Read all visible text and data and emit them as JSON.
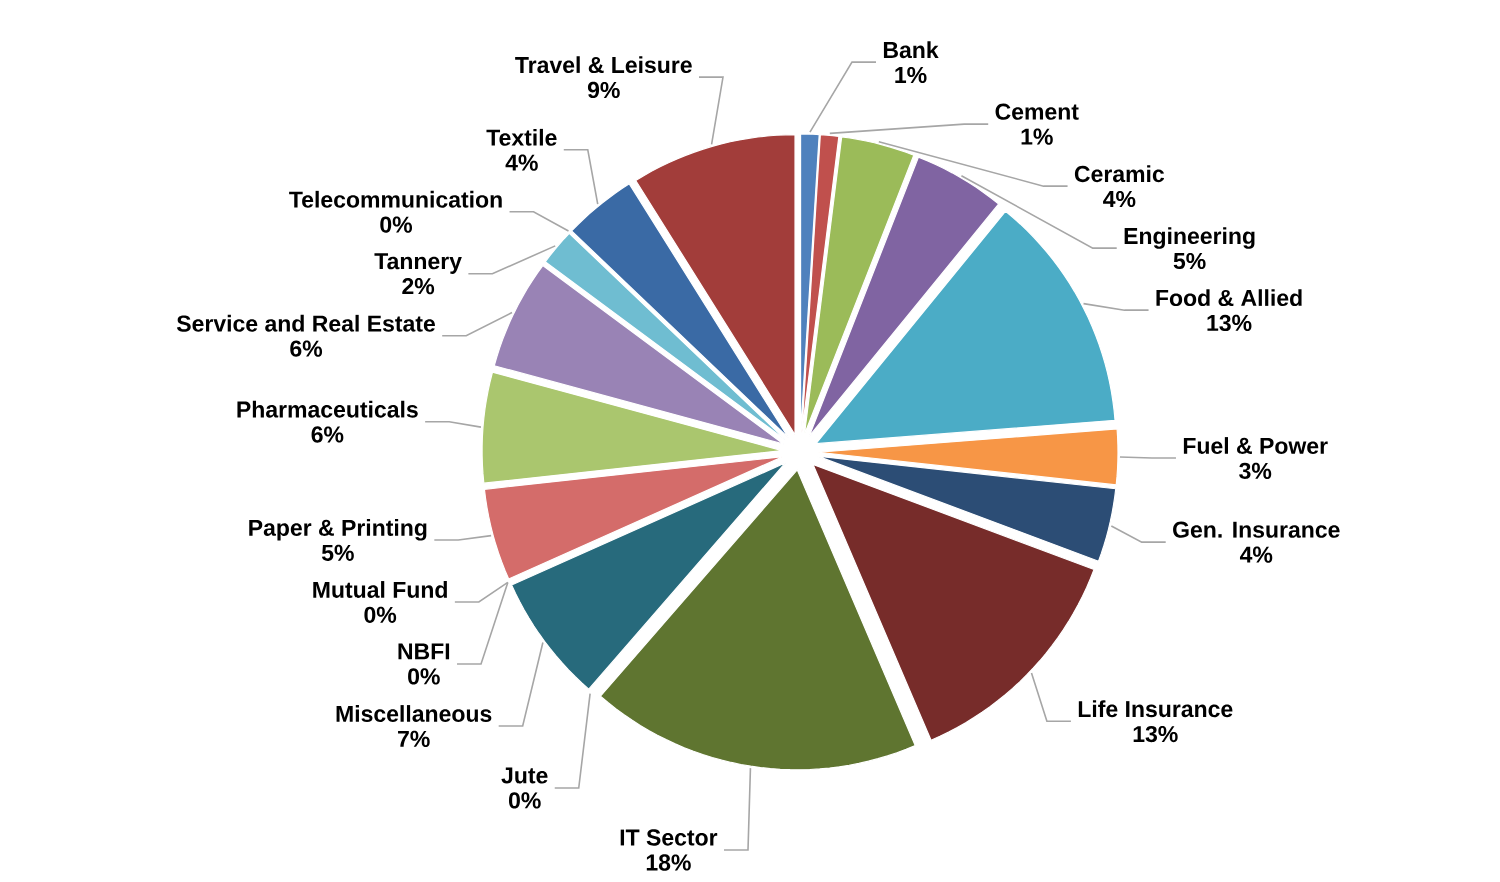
{
  "chart_data": {
    "type": "pie",
    "categories": [
      "Bank",
      "Cement",
      "Ceramic",
      "Engineering",
      "Food & Allied",
      "Fuel & Power",
      "Gen. Insurance",
      "Life Insurance",
      "IT Sector",
      "Jute",
      "Miscellaneous",
      "Mutual Fund",
      "NBFI",
      "Paper & Printing",
      "Pharmaceuticals",
      "Service and Real Estate",
      "Tannery",
      "Telecommunication",
      "Textile",
      "Travel & Leisure"
    ],
    "values": [
      1,
      1,
      4,
      5,
      13,
      3,
      4,
      13,
      18,
      0,
      7,
      0,
      0,
      5,
      6,
      6,
      2,
      0,
      4,
      9
    ],
    "value_labels": [
      "1%",
      "1%",
      "4%",
      "5%",
      "13%",
      "3%",
      "4%",
      "13%",
      "18%",
      "0%",
      "7%",
      "0%",
      "0%",
      "5%",
      "6%",
      "6%",
      "2%",
      "0%",
      "4%",
      "9%"
    ],
    "colors": [
      "#4f81bd",
      "#c0504d",
      "#9bbb59",
      "#8064a2",
      "#4bacc6",
      "#f79646",
      "#2c4d75",
      "#772c2a",
      "#5f7530",
      "#b65708",
      "#276a7c",
      "#7f6084",
      "#4d3b62",
      "#d46c6a",
      "#aac66e",
      "#9983b5",
      "#6fbdd1",
      "#f9ab6b",
      "#3a6aa5",
      "#a23d3a"
    ]
  }
}
